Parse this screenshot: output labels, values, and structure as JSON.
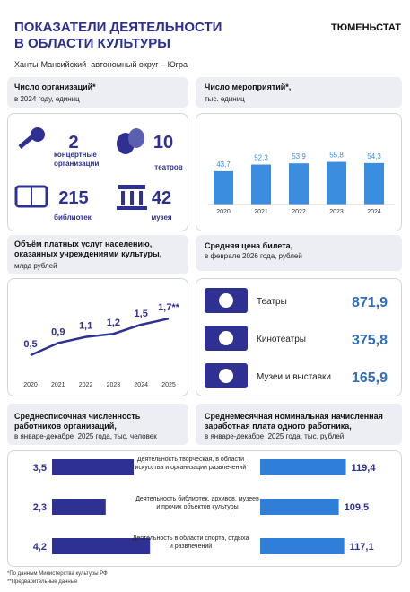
{
  "header": {
    "title_line1": "ПОКАЗАТЕЛИ ДЕЯТЕЛЬНОСТИ",
    "title_line2": "В ОБЛАСТИ КУЛЬТУРЫ",
    "brand": "ТЮМЕНЬСТАТ",
    "subtitle": "Ханты-Мансийский  автономный округ – Югра"
  },
  "organizations": {
    "title": "Число организаций*",
    "subtitle": "в 2024 году, единиц",
    "items": [
      {
        "value": 2,
        "label": "концертные организации"
      },
      {
        "value": 10,
        "label": "театров"
      },
      {
        "value": 215,
        "label": "библиотек"
      },
      {
        "value": 42,
        "label": "музея"
      }
    ]
  },
  "events": {
    "title": "Число мероприятий*,",
    "subtitle": "тыс. единиц",
    "categories": [
      "2020",
      "2021",
      "2022",
      "2023",
      "2024"
    ],
    "values": [
      43.7,
      52.3,
      53.9,
      55.8,
      54.3
    ],
    "value_labels": [
      "43,7",
      "52,3",
      "53,9",
      "55,8",
      "54,3"
    ],
    "color": "#3b8de0"
  },
  "paid_services": {
    "title": "Объём платных услуг  населению, оказанных учреждениями культуры,",
    "subtitle": "млрд рублей",
    "categories": [
      "2020",
      "2021",
      "2022",
      "2023",
      "2024",
      "2025"
    ],
    "values": [
      0.5,
      0.9,
      1.1,
      1.2,
      1.5,
      1.7
    ],
    "value_labels": [
      "0,5",
      "0,9",
      "1,1",
      "1,2",
      "1,5",
      "1,7**"
    ],
    "color": "#2e3192"
  },
  "ticket_price": {
    "title": "Средняя цена билета,",
    "subtitle": "в феврале 2026 года, рублей",
    "items": [
      {
        "label": "Театры",
        "value": 871.9,
        "value_label": "871,9"
      },
      {
        "label": "Кинотеатры",
        "value": 375.8,
        "value_label": "375,8"
      },
      {
        "label": "Музеи и выставки",
        "value": 165.9,
        "value_label": "165,9"
      }
    ]
  },
  "workers": {
    "title": "Среднесписочная численность работников организаций,",
    "subtitle": "в январе-декабре  2025 года, тыс. человек",
    "values": [
      3.5,
      2.3,
      4.2
    ],
    "value_labels": [
      "3,5",
      "2,3",
      "4,2"
    ],
    "color": "#2e3192"
  },
  "salary": {
    "title": "Среднемесячная номинальная начисленная заработная плата одного работника,",
    "subtitle": "в январе-декабре  2025 года, тыс. рублей",
    "values": [
      119.4,
      109.5,
      117.1
    ],
    "value_labels": [
      "119,4",
      "109,5",
      "117,1"
    ],
    "color": "#2f7fd8"
  },
  "activities": [
    "Деятельность творческая, в области искусства и организации развлечений",
    "Деятельность библиотек, архивов, музеев и прочих объектов культуры",
    "Деятельность в области спорта, отдыха и развлечений"
  ],
  "footnotes": [
    "*По данным Министерства культуры РФ",
    "**Предварительные данные"
  ]
}
